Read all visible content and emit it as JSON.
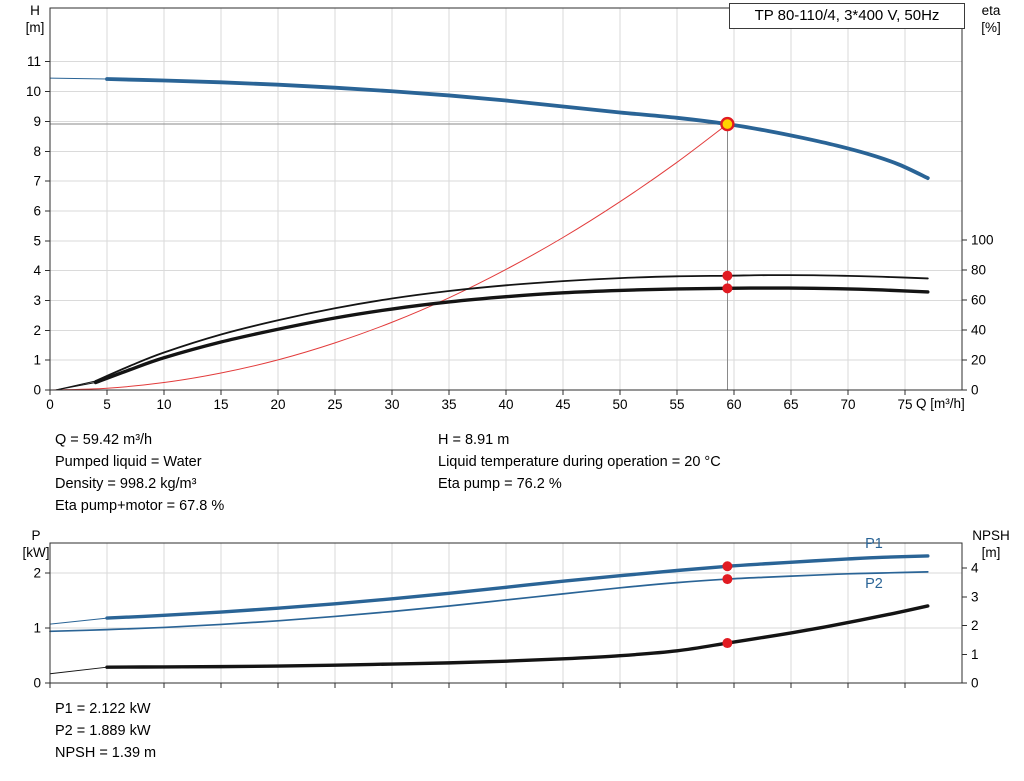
{
  "title_box": "TP 80-110/4, 3*400 V, 50Hz",
  "axis_labels": {
    "top_left": [
      "H",
      "[m]"
    ],
    "top_right": [
      "eta",
      "[%]"
    ],
    "x": "Q [m³/h]",
    "bottom_left": [
      "P",
      "[kW]"
    ],
    "bottom_right": [
      "NPSH",
      "[m]"
    ]
  },
  "top_info": {
    "col1": [
      "Q = 59.42 m³/h",
      "Pumped liquid = Water",
      "Density = 998.2 kg/m³",
      "Eta pump+motor = 67.8 %"
    ],
    "col2": [
      "H = 8.91 m",
      "Liquid temperature during operation = 20 °C",
      "Eta pump = 76.2 %"
    ]
  },
  "bottom_info": [
    "P1 = 2.122 kW",
    "P2 = 1.889 kW",
    "NPSH = 1.39 m"
  ],
  "colors": {
    "curve_blue": "#2a6496",
    "marker_red": "#e11b22",
    "duty_fill": "#ffd200",
    "curve_black": "#141414"
  },
  "chart_data": [
    {
      "type": "line",
      "title": "TP 80-110/4, 3*400 V, 50Hz",
      "x_axis": {
        "label": "Q [m³/h]",
        "min": 0,
        "max": 80,
        "ticks": [
          0,
          5,
          10,
          15,
          20,
          25,
          30,
          35,
          40,
          45,
          50,
          55,
          60,
          65,
          70,
          75
        ]
      },
      "y_left": {
        "label": "H [m]",
        "min": 0,
        "max": 12.8,
        "ticks": [
          0,
          1,
          2,
          3,
          4,
          5,
          6,
          7,
          8,
          9,
          10,
          11
        ]
      },
      "y_right": {
        "label": "eta [%]",
        "min": 0,
        "max": 254.7,
        "ticks": [
          0,
          20,
          40,
          60,
          80,
          100
        ]
      },
      "duty_point": {
        "Q": 59.42,
        "H": 8.91
      },
      "series": [
        {
          "name": "head-curve",
          "axis": "left",
          "color": "#2a6496",
          "width": 3.8,
          "lead": [
            [
              0,
              10.45
            ],
            [
              5,
              10.42
            ]
          ],
          "points": [
            [
              5,
              10.42
            ],
            [
              10,
              10.37
            ],
            [
              15,
              10.31
            ],
            [
              20,
              10.23
            ],
            [
              25,
              10.13
            ],
            [
              30,
              10.01
            ],
            [
              35,
              9.87
            ],
            [
              40,
              9.7
            ],
            [
              45,
              9.5
            ],
            [
              50,
              9.3
            ],
            [
              55,
              9.12
            ],
            [
              59.42,
              8.91
            ],
            [
              63,
              8.68
            ],
            [
              66,
              8.45
            ],
            [
              69,
              8.19
            ],
            [
              72,
              7.88
            ],
            [
              74.5,
              7.55
            ],
            [
              77,
              7.1
            ]
          ]
        },
        {
          "name": "system-curve",
          "axis": "left",
          "color": "#e23b3b",
          "width": 1,
          "points": [
            [
              0,
              0
            ],
            [
              5,
              0.06
            ],
            [
              10,
              0.25
            ],
            [
              15,
              0.57
            ],
            [
              20,
              1.01
            ],
            [
              25,
              1.58
            ],
            [
              30,
              2.27
            ],
            [
              35,
              3.09
            ],
            [
              40,
              4.04
            ],
            [
              45,
              5.11
            ],
            [
              50,
              6.31
            ],
            [
              55,
              7.63
            ],
            [
              59.42,
              8.91
            ]
          ]
        },
        {
          "name": "eta-pump-curve",
          "axis": "right",
          "color": "#141414",
          "width": 1.8,
          "lead": [
            [
              0.5,
              0
            ],
            [
              4,
              6
            ]
          ],
          "points": [
            [
              4,
              6
            ],
            [
              7,
              16
            ],
            [
              10,
              25
            ],
            [
              15,
              37
            ],
            [
              20,
              46.5
            ],
            [
              25,
              54.5
            ],
            [
              30,
              61
            ],
            [
              35,
              66
            ],
            [
              40,
              69.8
            ],
            [
              45,
              72.6
            ],
            [
              50,
              74.6
            ],
            [
              55,
              75.8
            ],
            [
              59.42,
              76.2
            ],
            [
              63,
              76.6
            ],
            [
              67,
              76.5
            ],
            [
              70,
              76.1
            ],
            [
              73,
              75.5
            ],
            [
              77,
              74.4
            ]
          ],
          "marker": {
            "x": 59.42,
            "y": 76.2
          }
        },
        {
          "name": "eta-pump-motor-curve",
          "axis": "right",
          "color": "#141414",
          "width": 3.4,
          "lead": [
            [
              0.5,
              0
            ],
            [
              4,
              5
            ]
          ],
          "points": [
            [
              4,
              5
            ],
            [
              7,
              13.5
            ],
            [
              10,
              21.5
            ],
            [
              15,
              32
            ],
            [
              20,
              40.5
            ],
            [
              25,
              48
            ],
            [
              30,
              54
            ],
            [
              35,
              58.7
            ],
            [
              40,
              62.2
            ],
            [
              45,
              64.8
            ],
            [
              50,
              66.4
            ],
            [
              55,
              67.4
            ],
            [
              59.42,
              67.8
            ],
            [
              63,
              68
            ],
            [
              67,
              67.8
            ],
            [
              70,
              67.4
            ],
            [
              73,
              66.7
            ],
            [
              77,
              65.4
            ]
          ],
          "marker": {
            "x": 59.42,
            "y": 67.8
          }
        }
      ]
    },
    {
      "type": "line",
      "x_axis": {
        "label": "Q [m³/h]",
        "min": 0,
        "max": 80,
        "ticks": [
          0,
          5,
          10,
          15,
          20,
          25,
          30,
          35,
          40,
          45,
          50,
          55,
          60,
          65,
          70,
          75
        ]
      },
      "y_left": {
        "label": "P [kW]",
        "min": 0,
        "max": 2.545,
        "ticks": [
          0,
          1,
          2
        ]
      },
      "y_right": {
        "label": "NPSH [m]",
        "min": 0,
        "max": 4.87,
        "ticks": [
          0,
          1,
          2,
          3,
          4
        ]
      },
      "series": [
        {
          "name": "p1-curve",
          "axis": "left",
          "color": "#2a6496",
          "width": 3.4,
          "lead": [
            [
              0,
              1.07
            ],
            [
              5,
              1.18
            ]
          ],
          "points": [
            [
              5,
              1.18
            ],
            [
              10,
              1.23
            ],
            [
              15,
              1.29
            ],
            [
              20,
              1.36
            ],
            [
              25,
              1.44
            ],
            [
              30,
              1.53
            ],
            [
              35,
              1.63
            ],
            [
              40,
              1.74
            ],
            [
              45,
              1.85
            ],
            [
              50,
              1.95
            ],
            [
              55,
              2.045
            ],
            [
              59.42,
              2.122
            ],
            [
              63,
              2.17
            ],
            [
              67,
              2.22
            ],
            [
              70,
              2.255
            ],
            [
              73,
              2.285
            ],
            [
              77,
              2.31
            ]
          ],
          "marker": {
            "x": 59.42,
            "y": 2.122
          },
          "label": {
            "text": "P1",
            "x": 71.5,
            "y": 2.45
          }
        },
        {
          "name": "p2-curve",
          "axis": "left",
          "color": "#2a6496",
          "width": 1.7,
          "points": [
            [
              0,
              0.94
            ],
            [
              5,
              0.97
            ],
            [
              10,
              1.01
            ],
            [
              15,
              1.065
            ],
            [
              20,
              1.13
            ],
            [
              25,
              1.21
            ],
            [
              30,
              1.3
            ],
            [
              35,
              1.4
            ],
            [
              40,
              1.51
            ],
            [
              45,
              1.62
            ],
            [
              50,
              1.73
            ],
            [
              55,
              1.825
            ],
            [
              59.42,
              1.889
            ],
            [
              63,
              1.925
            ],
            [
              67,
              1.96
            ],
            [
              70,
              1.985
            ],
            [
              73,
              2.0
            ],
            [
              77,
              2.02
            ]
          ],
          "marker": {
            "x": 59.42,
            "y": 1.889
          },
          "label": {
            "text": "P2",
            "x": 71.5,
            "y": 1.73
          }
        },
        {
          "name": "npsh-curve",
          "axis": "right",
          "color": "#141414",
          "width": 3.4,
          "lead": [
            [
              0,
              0.32
            ],
            [
              5,
              0.55
            ]
          ],
          "points": [
            [
              5,
              0.55
            ],
            [
              10,
              0.56
            ],
            [
              15,
              0.57
            ],
            [
              20,
              0.59
            ],
            [
              25,
              0.62
            ],
            [
              30,
              0.66
            ],
            [
              35,
              0.7
            ],
            [
              40,
              0.76
            ],
            [
              45,
              0.84
            ],
            [
              50,
              0.95
            ],
            [
              55,
              1.12
            ],
            [
              59.42,
              1.39
            ],
            [
              62,
              1.55
            ],
            [
              65,
              1.74
            ],
            [
              68,
              1.95
            ],
            [
              71,
              2.18
            ],
            [
              74,
              2.42
            ],
            [
              77,
              2.68
            ]
          ],
          "marker": {
            "x": 59.42,
            "y": 1.39
          }
        }
      ]
    }
  ]
}
